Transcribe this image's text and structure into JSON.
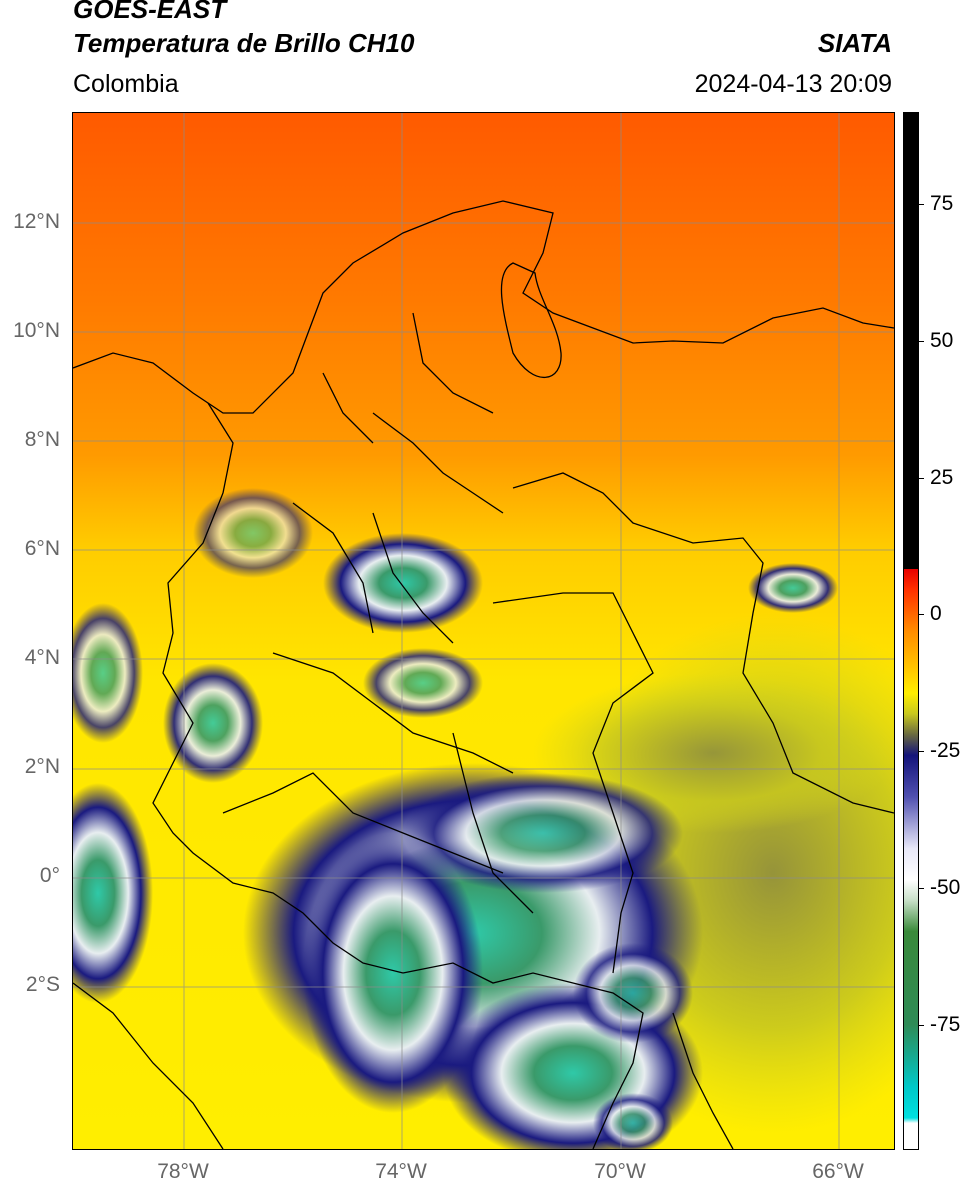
{
  "header": {
    "title_line1": "GOES-EAST",
    "title_line2": "Temperatura de Brillo CH10",
    "region": "Colombia",
    "organization": "SIATA",
    "datetime": "2024-04-13 20:09"
  },
  "map": {
    "lat_labels": [
      "12°N",
      "10°N",
      "8°N",
      "6°N",
      "4°N",
      "2°N",
      "0°",
      "2°S"
    ],
    "lon_labels": [
      "78°W",
      "74°W",
      "70°W",
      "66°W"
    ]
  },
  "colorbar": {
    "labels": [
      "75",
      "50",
      "25",
      "0",
      "-25",
      "-50",
      "-75"
    ],
    "colors": {
      "warm_black": "#000000",
      "red": "#e60000",
      "orange": "#ff8c00",
      "yellow": "#ffee00",
      "olive": "#c8c81e",
      "navy": "#14147a",
      "white": "#ffffff",
      "green": "#2e8b57",
      "cyan": "#00e0e0"
    }
  }
}
